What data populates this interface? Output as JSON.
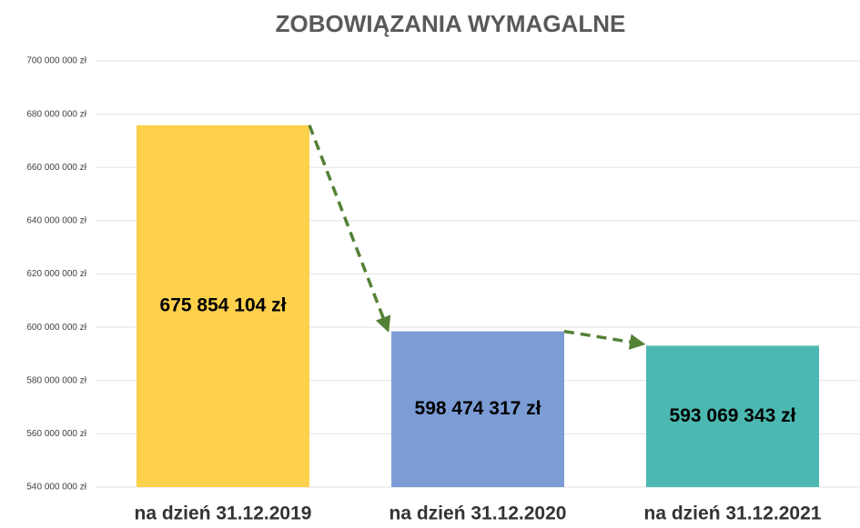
{
  "chart_data": {
    "type": "bar",
    "title": "ZOBOWIĄZANIA WYMAGALNE",
    "categories": [
      "na dzień 31.12.2019",
      "na dzień 31.12.2020",
      "na dzień 31.12.2021"
    ],
    "values": [
      675854104,
      598474317,
      593069343
    ],
    "value_labels": [
      "675 854 104 zł",
      "598 474 317 zł",
      "593 069 343 zł"
    ],
    "colors": [
      "#fdd14c",
      "#7b9cd5",
      "#4bb9b1"
    ],
    "ylim": [
      540000000,
      700000000
    ],
    "yticks": [
      {
        "value": 540000000,
        "label": "540 000 000 zł"
      },
      {
        "value": 560000000,
        "label": "560 000 000 zł"
      },
      {
        "value": 580000000,
        "label": "580 000 000 zł"
      },
      {
        "value": 600000000,
        "label": "600 000 000 zł"
      },
      {
        "value": 620000000,
        "label": "620 000 000 zł"
      },
      {
        "value": 640000000,
        "label": "640 000 000 zł"
      },
      {
        "value": 660000000,
        "label": "660 000 000 zł"
      },
      {
        "value": 680000000,
        "label": "680 000 000 zł"
      },
      {
        "value": 700000000,
        "label": "700 000 000 zł"
      }
    ],
    "grid": true
  }
}
